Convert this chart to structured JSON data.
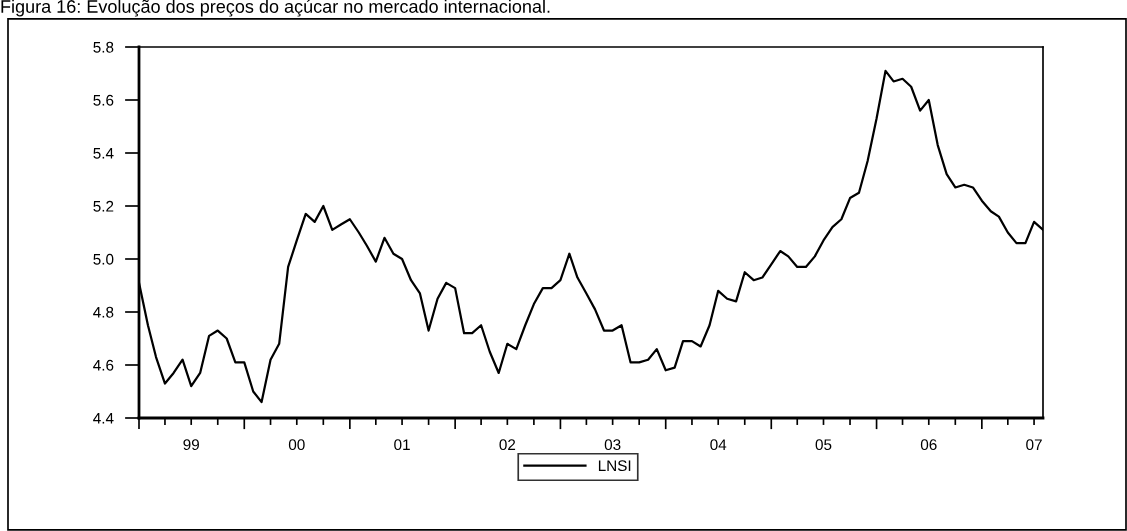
{
  "chart_data": {
    "type": "line",
    "title": "Figura 16: Evolução dos preços do açúcar no mercado internacional.",
    "x": [
      "1999-01",
      "1999-02",
      "1999-03",
      "1999-04",
      "1999-05",
      "1999-06",
      "1999-07",
      "1999-08",
      "1999-09",
      "1999-10",
      "1999-11",
      "1999-12",
      "2000-01",
      "2000-02",
      "2000-03",
      "2000-04",
      "2000-05",
      "2000-06",
      "2000-07",
      "2000-08",
      "2000-09",
      "2000-10",
      "2000-11",
      "2000-12",
      "2001-01",
      "2001-02",
      "2001-03",
      "2001-04",
      "2001-05",
      "2001-06",
      "2001-07",
      "2001-08",
      "2001-09",
      "2001-10",
      "2001-11",
      "2001-12",
      "2002-01",
      "2002-02",
      "2002-03",
      "2002-04",
      "2002-05",
      "2002-06",
      "2002-07",
      "2002-08",
      "2002-09",
      "2002-10",
      "2002-11",
      "2002-12",
      "2003-01",
      "2003-02",
      "2003-03",
      "2003-04",
      "2003-05",
      "2003-06",
      "2003-07",
      "2003-08",
      "2003-09",
      "2003-10",
      "2003-11",
      "2003-12",
      "2004-01",
      "2004-02",
      "2004-03",
      "2004-04",
      "2004-05",
      "2004-06",
      "2004-07",
      "2004-08",
      "2004-09",
      "2004-10",
      "2004-11",
      "2004-12",
      "2005-01",
      "2005-02",
      "2005-03",
      "2005-04",
      "2005-05",
      "2005-06",
      "2005-07",
      "2005-08",
      "2005-09",
      "2005-10",
      "2005-11",
      "2005-12",
      "2006-01",
      "2006-02",
      "2006-03",
      "2006-04",
      "2006-05",
      "2006-06",
      "2006-07",
      "2006-08",
      "2006-09",
      "2006-10",
      "2006-11",
      "2006-12",
      "2007-01",
      "2007-02",
      "2007-03",
      "2007-04",
      "2007-05",
      "2007-06",
      "2007-07",
      "2007-08"
    ],
    "series": [
      {
        "name": "LNSI",
        "color": "#000000",
        "values": [
          4.91,
          4.75,
          4.63,
          4.53,
          4.57,
          4.62,
          4.52,
          4.57,
          4.71,
          4.73,
          4.7,
          4.61,
          4.61,
          4.5,
          4.46,
          4.62,
          4.68,
          4.97,
          5.07,
          5.17,
          5.14,
          5.2,
          5.11,
          5.13,
          5.15,
          5.1,
          5.05,
          4.99,
          5.08,
          5.02,
          5.0,
          4.92,
          4.87,
          4.73,
          4.85,
          4.91,
          4.89,
          4.72,
          4.72,
          4.75,
          4.65,
          4.57,
          4.68,
          4.66,
          4.75,
          4.83,
          4.89,
          4.89,
          4.92,
          5.02,
          4.93,
          4.87,
          4.81,
          4.73,
          4.73,
          4.75,
          4.61,
          4.61,
          4.62,
          4.66,
          4.58,
          4.59,
          4.69,
          4.69,
          4.67,
          4.75,
          4.88,
          4.85,
          4.84,
          4.95,
          4.92,
          4.93,
          4.98,
          5.03,
          5.01,
          4.97,
          4.97,
          5.01,
          5.07,
          5.12,
          5.15,
          5.23,
          5.25,
          5.37,
          5.53,
          5.71,
          5.67,
          5.68,
          5.65,
          5.56,
          5.6,
          5.43,
          5.32,
          5.27,
          5.28,
          5.27,
          5.22,
          5.18,
          5.16,
          5.1,
          5.06,
          5.06,
          5.14,
          5.11
        ]
      }
    ],
    "xlim": [
      "1999-01",
      "2007-08"
    ],
    "xticks": [
      {
        "value": "1999-01",
        "label": null
      },
      {
        "value": "1999-04",
        "label": null
      },
      {
        "value": "1999-07",
        "label": "99"
      },
      {
        "value": "1999-10",
        "label": null
      },
      {
        "value": "2000-01",
        "label": null
      },
      {
        "value": "2000-04",
        "label": null
      },
      {
        "value": "2000-07",
        "label": "00"
      },
      {
        "value": "2000-10",
        "label": null
      },
      {
        "value": "2001-01",
        "label": null
      },
      {
        "value": "2001-04",
        "label": null
      },
      {
        "value": "2001-07",
        "label": "01"
      },
      {
        "value": "2001-10",
        "label": null
      },
      {
        "value": "2002-01",
        "label": null
      },
      {
        "value": "2002-04",
        "label": null
      },
      {
        "value": "2002-07",
        "label": "02"
      },
      {
        "value": "2002-10",
        "label": null
      },
      {
        "value": "2003-01",
        "label": null
      },
      {
        "value": "2003-04",
        "label": null
      },
      {
        "value": "2003-07",
        "label": "03"
      },
      {
        "value": "2003-10",
        "label": null
      },
      {
        "value": "2004-01",
        "label": null
      },
      {
        "value": "2004-04",
        "label": null
      },
      {
        "value": "2004-07",
        "label": "04"
      },
      {
        "value": "2004-10",
        "label": null
      },
      {
        "value": "2005-01",
        "label": null
      },
      {
        "value": "2005-04",
        "label": null
      },
      {
        "value": "2005-07",
        "label": "05"
      },
      {
        "value": "2005-10",
        "label": null
      },
      {
        "value": "2006-01",
        "label": null
      },
      {
        "value": "2006-04",
        "label": null
      },
      {
        "value": "2006-07",
        "label": "06"
      },
      {
        "value": "2006-10",
        "label": null
      },
      {
        "value": "2007-01",
        "label": null
      },
      {
        "value": "2007-04",
        "label": null
      },
      {
        "value": "2007-07",
        "label": "07"
      }
    ],
    "ylim": [
      4.4,
      5.8
    ],
    "yticks": [
      {
        "value": 4.4,
        "label": "4.4"
      },
      {
        "value": 4.6,
        "label": "4.6"
      },
      {
        "value": 4.8,
        "label": "4.8"
      },
      {
        "value": 5.0,
        "label": "5.0"
      },
      {
        "value": 5.2,
        "label": "5.2"
      },
      {
        "value": 5.4,
        "label": "5.4"
      },
      {
        "value": 5.6,
        "label": "5.6"
      },
      {
        "value": 5.8,
        "label": "5.8"
      }
    ],
    "grid": false,
    "legend": "bottom",
    "line_style": "solid",
    "marker": "none"
  }
}
